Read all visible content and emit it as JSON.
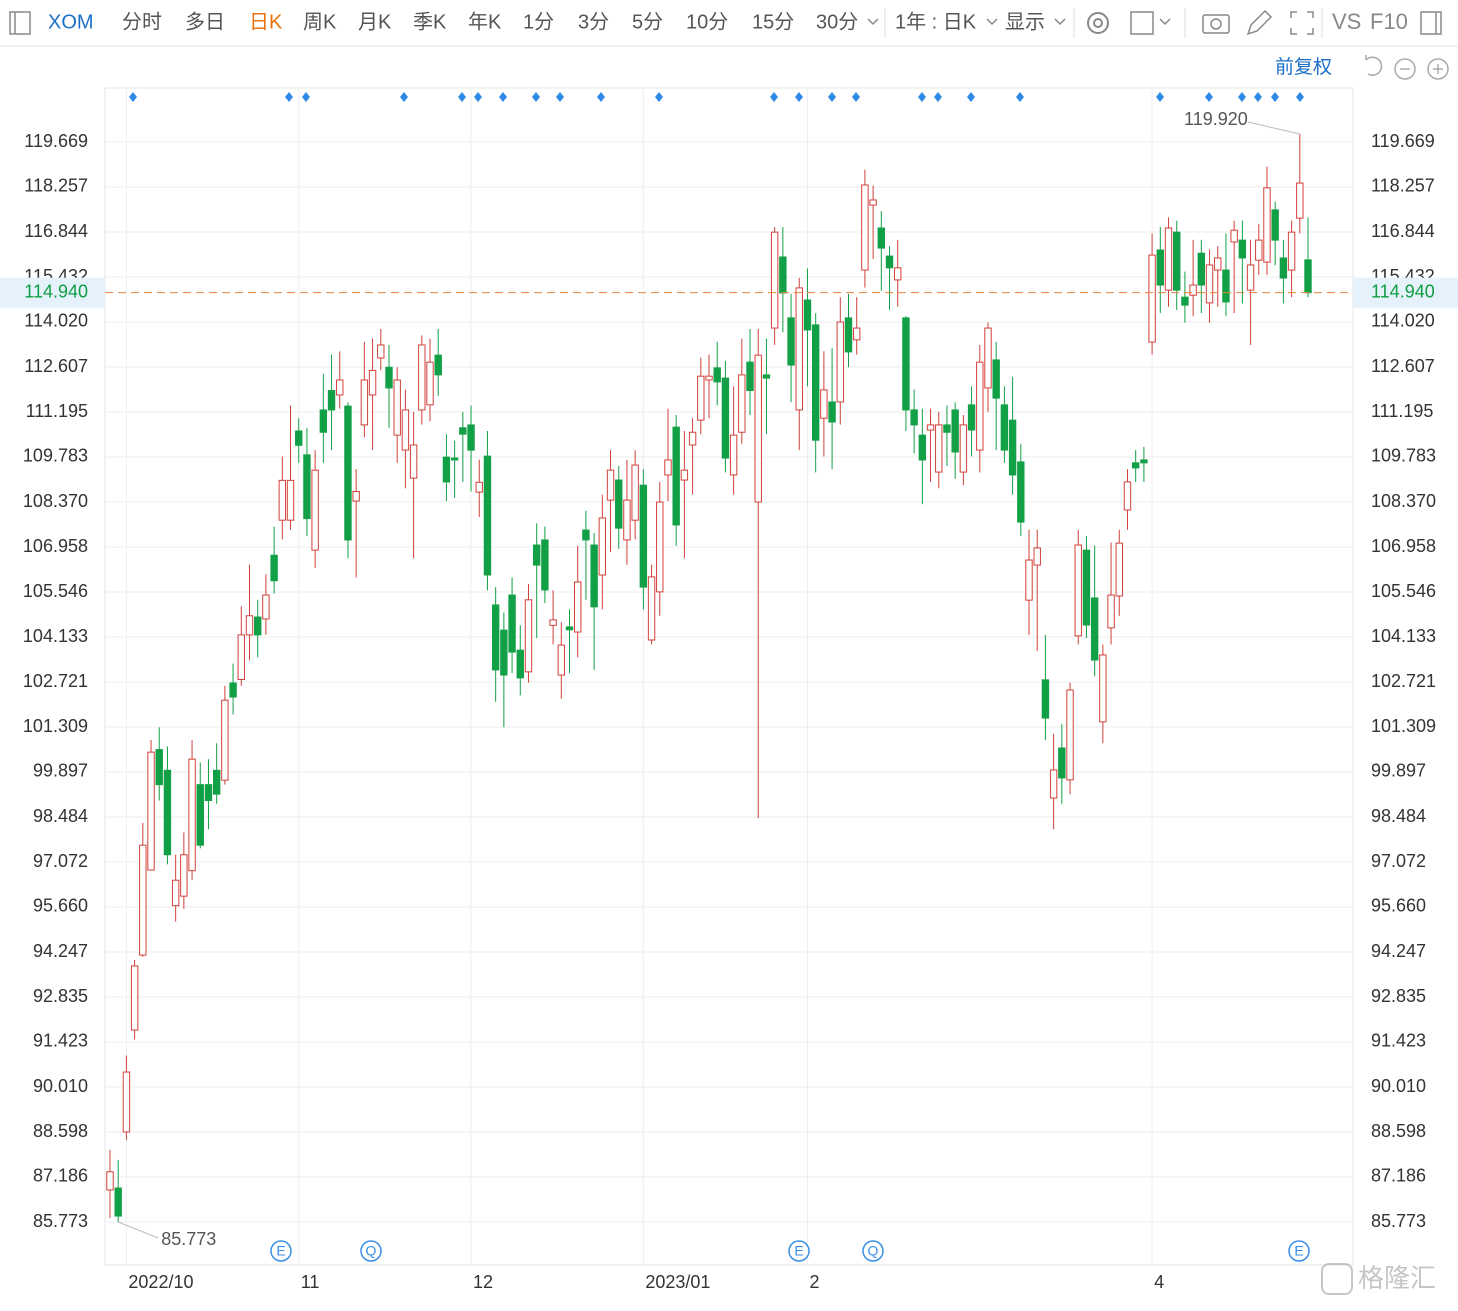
{
  "toolbar": {
    "symbol": "XOM",
    "periods": [
      "分时",
      "多日",
      "日K",
      "周K",
      "月K",
      "季K",
      "年K",
      "1分",
      "3分",
      "5分",
      "10分",
      "15分",
      "30分"
    ],
    "active_period": 2,
    "range": "1年 : 日K",
    "display": "显示",
    "compare": "VS",
    "f10": "F10"
  },
  "adjust": "前复权",
  "watermark": "格隆汇",
  "events": [
    "E",
    "Q",
    "E",
    "Q",
    "E"
  ],
  "chart_data": {
    "type": "candlestick",
    "categories": [
      null,
      null,
      "2022/10",
      null,
      null,
      null,
      null,
      null,
      null,
      null,
      null,
      null,
      null,
      null,
      null,
      null,
      null,
      null,
      null,
      null,
      null,
      null,
      null,
      "11",
      null,
      null,
      null,
      null,
      null,
      null,
      null,
      null,
      null,
      null,
      null,
      null,
      null,
      null,
      null,
      null,
      null,
      null,
      null,
      null,
      "12",
      null,
      null,
      null,
      null,
      null,
      null,
      null,
      null,
      null,
      null,
      null,
      null,
      null,
      null,
      null,
      null,
      null,
      null,
      null,
      null,
      "2023/01",
      null,
      null,
      null,
      null,
      null,
      null,
      null,
      null,
      null,
      null,
      null,
      null,
      null,
      null,
      null,
      null,
      null,
      null,
      null,
      "2",
      null,
      null,
      null,
      null,
      null,
      null,
      null,
      null,
      null,
      null,
      null,
      null,
      null,
      null,
      null,
      null,
      null,
      null,
      null,
      null,
      null,
      null,
      null,
      null,
      null,
      null,
      null,
      null,
      null,
      null,
      null,
      null,
      null,
      null,
      null,
      null,
      null,
      null,
      null,
      null,
      null,
      "4",
      null,
      null,
      null,
      null,
      null,
      null,
      null,
      null,
      null,
      null,
      null,
      null,
      null,
      null,
      null,
      null,
      null,
      null,
      null
    ],
    "open": [
      86.78,
      86.84,
      88.6,
      91.8,
      94.15,
      96.82,
      100.6,
      99.95,
      95.7,
      96.0,
      96.8,
      99.5,
      99.5,
      99.95,
      99.64,
      102.69,
      102.8,
      104.2,
      104.76,
      104.7,
      106.7,
      107.8,
      107.8,
      110.6,
      109.85,
      106.86,
      111.26,
      111.87,
      111.73,
      111.38,
      108.4,
      110.79,
      111.73,
      112.89,
      112.6,
      110.47,
      110.0,
      109.12,
      111.26,
      111.42,
      112.98,
      109.78,
      109.75,
      110.7,
      110.79,
      108.68,
      109.81,
      105.14,
      104.35,
      105.45,
      103.72,
      103.04,
      107.02,
      107.18,
      104.5,
      102.94,
      104.45,
      104.29,
      107.49,
      107.02,
      106.08,
      108.43,
      109.06,
      107.18,
      107.8,
      108.9,
      104.04,
      105.55,
      109.22,
      110.72,
      109.06,
      110.16,
      110.94,
      112.2,
      112.58,
      112.26,
      109.22,
      110.56,
      112.76,
      108.37,
      112.36,
      113.83,
      116.06,
      114.15,
      111.26,
      114.71,
      113.93,
      111.0,
      111.51,
      111.51,
      114.15,
      113.46,
      115.65,
      117.69,
      116.97,
      116.09,
      115.34,
      114.15,
      111.26,
      110.47,
      110.63,
      109.31,
      110.79,
      111.26,
      109.31,
      111.42,
      110.0,
      111.95,
      112.83,
      111.42,
      110.94,
      109.63,
      105.29,
      106.39,
      102.79,
      99.08,
      100.65,
      99.65,
      104.17,
      106.86,
      105.36,
      101.47,
      104.42,
      105.42,
      108.12,
      109.6,
      109.69,
      113.39,
      116.28,
      115.02,
      116.84,
      114.8,
      114.86,
      116.18,
      114.62,
      115.65,
      115.65,
      116.53,
      116.59,
      115.02,
      115.96,
      115.9,
      117.54,
      116.03,
      115.65,
      117.28,
      115.97
    ],
    "high": [
      88.04,
      87.72,
      91.0,
      94.0,
      98.3,
      100.9,
      101.3,
      100.7,
      97.3,
      98.0,
      100.9,
      100.2,
      100.3,
      100.8,
      102.6,
      103.3,
      105.1,
      106.4,
      105.3,
      106.1,
      107.6,
      109.8,
      111.4,
      111.0,
      110.7,
      110.0,
      112.4,
      113.0,
      113.1,
      111.5,
      109.4,
      113.4,
      113.5,
      113.8,
      113.3,
      112.6,
      111.9,
      111.2,
      113.6,
      113.5,
      113.8,
      110.5,
      110.3,
      111.2,
      111.4,
      109.7,
      110.6,
      105.7,
      104.9,
      106.0,
      104.5,
      105.8,
      107.7,
      107.6,
      105.6,
      104.6,
      105.0,
      107.0,
      108.1,
      107.4,
      108.6,
      110.0,
      109.5,
      109.7,
      110.0,
      109.4,
      106.4,
      109.0,
      111.3,
      111.1,
      110.6,
      111.0,
      112.9,
      113.0,
      113.4,
      112.8,
      112.0,
      113.5,
      113.8,
      113.8,
      113.5,
      117.0,
      117.0,
      114.9,
      115.4,
      115.7,
      114.3,
      113.1,
      113.2,
      114.8,
      114.9,
      114.8,
      118.8,
      118.3,
      117.5,
      116.4,
      116.6,
      114.2,
      111.9,
      111.3,
      111.3,
      111.2,
      111.4,
      111.5,
      111.1,
      112.0,
      113.3,
      114.0,
      113.4,
      112.0,
      112.3,
      110.2,
      107.5,
      107.5,
      104.2,
      101.1,
      101.4,
      102.7,
      107.5,
      107.3,
      107.0,
      103.9,
      107.1,
      107.5,
      109.4,
      110.0,
      110.1,
      116.8,
      117.0,
      117.3,
      117.2,
      115.6,
      116.6,
      116.6,
      116.3,
      116.4,
      116.8,
      117.2,
      117.2,
      116.6,
      117.1,
      118.9,
      117.8,
      116.6,
      117.2,
      119.92,
      117.3
    ],
    "low": [
      85.9,
      85.773,
      88.35,
      91.5,
      94.1,
      96.8,
      99.0,
      97.0,
      95.2,
      95.6,
      96.5,
      97.5,
      98.1,
      98.9,
      99.5,
      101.7,
      102.6,
      103.4,
      103.5,
      104.2,
      105.5,
      107.2,
      107.5,
      109.6,
      107.3,
      106.3,
      109.6,
      110.0,
      111.3,
      106.6,
      106.0,
      110.4,
      110.0,
      112.5,
      110.7,
      109.6,
      108.8,
      106.6,
      110.8,
      110.9,
      111.7,
      108.4,
      108.5,
      109.0,
      108.7,
      107.9,
      105.6,
      102.1,
      101.3,
      103.0,
      102.3,
      102.7,
      104.1,
      105.2,
      103.9,
      102.2,
      103.0,
      103.5,
      105.3,
      103.1,
      105.0,
      106.8,
      106.9,
      106.4,
      107.2,
      105.0,
      103.9,
      104.8,
      108.4,
      107.0,
      106.6,
      108.6,
      110.5,
      111.0,
      111.4,
      109.3,
      108.6,
      110.2,
      111.1,
      98.45,
      110.5,
      113.3,
      113.7,
      111.5,
      110.0,
      112.0,
      109.3,
      109.8,
      109.4,
      110.8,
      112.6,
      113.0,
      115.1,
      116.0,
      115.0,
      114.4,
      114.5,
      110.6,
      109.9,
      108.3,
      109.0,
      108.8,
      109.5,
      109.1,
      108.9,
      109.8,
      109.3,
      111.2,
      110.0,
      109.6,
      108.6,
      107.3,
      104.2,
      103.7,
      100.9,
      98.1,
      98.9,
      99.2,
      103.9,
      104.1,
      102.9,
      100.8,
      103.9,
      104.8,
      107.5,
      109.0,
      109.0,
      113.0,
      114.3,
      114.5,
      114.4,
      114.0,
      114.2,
      114.3,
      114.0,
      114.5,
      114.2,
      114.3,
      114.6,
      113.3,
      115.5,
      115.5,
      115.8,
      114.6,
      114.8,
      116.8,
      114.8
    ],
    "close": [
      87.35,
      85.96,
      90.48,
      93.81,
      97.6,
      100.52,
      99.5,
      97.3,
      96.5,
      97.3,
      100.3,
      97.6,
      99.0,
      99.2,
      102.15,
      102.25,
      104.2,
      104.8,
      104.2,
      105.45,
      105.9,
      109.05,
      109.05,
      110.15,
      107.85,
      109.37,
      110.56,
      111.26,
      112.2,
      107.18,
      108.7,
      112.2,
      112.5,
      113.3,
      111.95,
      112.2,
      111.26,
      110.16,
      113.3,
      112.76,
      112.36,
      109.0,
      109.69,
      110.5,
      110.0,
      108.99,
      106.08,
      103.1,
      102.94,
      103.66,
      102.85,
      105.3,
      106.39,
      105.61,
      104.67,
      103.88,
      104.36,
      105.86,
      107.18,
      105.08,
      107.87,
      109.37,
      107.55,
      108.43,
      109.53,
      105.7,
      106.02,
      108.37,
      109.69,
      107.65,
      109.37,
      110.56,
      112.32,
      112.32,
      112.14,
      109.75,
      110.47,
      112.36,
      111.87,
      112.98,
      112.26,
      116.84,
      114.93,
      112.67,
      115.09,
      113.77,
      110.31,
      111.89,
      110.88,
      114.02,
      113.08,
      113.83,
      118.32,
      117.85,
      116.34,
      115.72,
      115.72,
      111.26,
      110.79,
      109.69,
      110.79,
      110.79,
      110.56,
      109.94,
      110.79,
      110.63,
      112.76,
      113.83,
      111.63,
      110.0,
      109.22,
      107.74,
      106.55,
      106.93,
      101.59,
      99.96,
      99.71,
      102.47,
      107.02,
      104.51,
      103.41,
      103.57,
      105.45,
      107.08,
      109.0,
      109.44,
      109.6,
      116.12,
      115.18,
      116.97,
      115.02,
      114.55,
      115.18,
      115.18,
      115.81,
      116.03,
      114.65,
      116.9,
      116.03,
      115.81,
      116.59,
      118.23,
      116.59,
      115.4,
      116.84,
      118.38,
      114.94
    ],
    "up_color": "#d2403a",
    "down_color": "#12a046",
    "ylim": [
      84.424,
      121.364
    ],
    "yticks": [
      119.669,
      118.257,
      116.844,
      115.432,
      {
        "value": 114.02,
        "label": "114.020"
      },
      112.607,
      111.195,
      109.783,
      {
        "value": 108.37,
        "label": "108.370"
      },
      106.958,
      105.546,
      104.133,
      102.721,
      101.309,
      99.897,
      98.484,
      97.072,
      {
        "value": 95.66,
        "label": "95.660"
      },
      94.247,
      92.835,
      91.423,
      {
        "value": 90.01,
        "label": "90.010"
      },
      88.598,
      87.186,
      85.773
    ],
    "grid": true,
    "last_price": {
      "value": 114.94,
      "label": "114.940"
    },
    "last_price_color": "#e8843a",
    "max_label": {
      "value": 119.92,
      "label": "119.920"
    },
    "min_label": 85.773
  }
}
